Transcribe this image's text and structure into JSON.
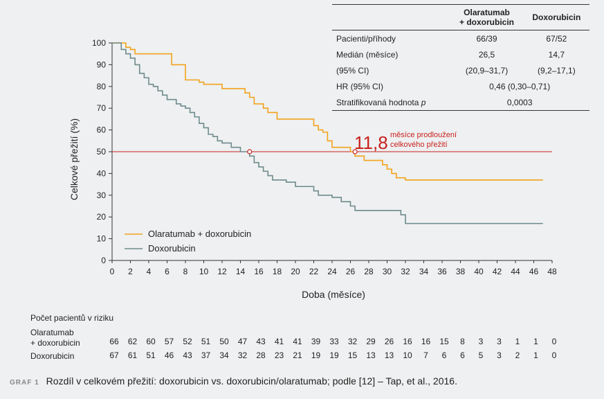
{
  "chart_data": {
    "type": "line",
    "xlabel": "Doba (měsíce)",
    "ylabel": "Celkové přežití (%)",
    "xlim": [
      0,
      48
    ],
    "ylim": [
      0,
      100
    ],
    "x_ticks": [
      0,
      2,
      4,
      6,
      8,
      10,
      12,
      14,
      16,
      18,
      20,
      22,
      24,
      26,
      28,
      30,
      32,
      34,
      36,
      38,
      40,
      42,
      44,
      46,
      48
    ],
    "y_ticks": [
      0,
      10,
      20,
      30,
      40,
      50,
      60,
      70,
      80,
      90,
      100
    ],
    "legend_position": "bottom-left",
    "series": [
      {
        "name": "Olaratumab + doxorubicin",
        "color": "#f2a21b",
        "x": [
          0,
          1,
          1.5,
          2,
          2.5,
          5,
          6.5,
          7,
          8,
          9.5,
          10,
          12,
          12.5,
          14.5,
          15,
          15.5,
          16,
          16.5,
          17,
          18,
          20,
          21,
          22,
          22.5,
          23,
          23.5,
          24,
          25,
          26,
          26.5,
          27.5,
          29,
          29.5,
          30,
          30.5,
          31,
          32,
          33,
          47
        ],
        "y": [
          100,
          100,
          98,
          97,
          95,
          95,
          90,
          90,
          83,
          82,
          81,
          79,
          79,
          77,
          75,
          72,
          72,
          70,
          68,
          65,
          65,
          65,
          62,
          60,
          59,
          55,
          52,
          52,
          50,
          48,
          46,
          46,
          44,
          42,
          40,
          38,
          37,
          37,
          37
        ]
      },
      {
        "name": "Doxorubicin",
        "color": "#6e8a8c",
        "x": [
          0,
          1,
          1.5,
          2,
          2.5,
          3,
          3.5,
          4,
          4.5,
          5,
          5.5,
          6,
          7,
          7.5,
          8,
          8.5,
          9,
          9.5,
          10,
          10.5,
          11,
          11.5,
          12,
          13,
          14,
          15,
          15.5,
          16,
          16.5,
          17,
          17.5,
          18,
          19,
          20,
          21,
          22,
          22.5,
          23,
          24,
          25,
          26,
          26.5,
          28,
          31,
          31.5,
          32,
          47
        ],
        "y": [
          100,
          97,
          95,
          93,
          90,
          86,
          84,
          81,
          80,
          78,
          76,
          74,
          72,
          71,
          70,
          68,
          66,
          63,
          61,
          58,
          57,
          55,
          54,
          52,
          50,
          48,
          45,
          43,
          41,
          39,
          37,
          37,
          36,
          34,
          34,
          32,
          30,
          30,
          29,
          27,
          25,
          23,
          23,
          23,
          21,
          17,
          17
        ]
      }
    ],
    "median_line": 50,
    "annotation": {
      "value": "11,8",
      "text_line1": "měsíce prodloužení",
      "text_line2": "celkového přežití",
      "color": "#c8201d"
    },
    "median_markers": [
      {
        "x": 15,
        "y": 50
      },
      {
        "x": 26.5,
        "y": 50
      }
    ]
  },
  "stats_table": {
    "headers": [
      "",
      "Olaratumab\n+ doxorubicin",
      "Doxorubicin"
    ],
    "rows": [
      {
        "label": "Pacienti/příhody",
        "a": "66/39",
        "b": "67/52"
      },
      {
        "label": "Medián (měsíce)",
        "a": "26,5",
        "b": "14,7"
      },
      {
        "label": "(95% CI)",
        "a": "(20,9–31,7)",
        "b": "(9,2–17,1)"
      },
      {
        "label": "HR (95% CI)",
        "span": "0,46 (0,30–0,71)"
      },
      {
        "label": "Stratifikovaná hodnota p",
        "span": "0,0003"
      }
    ]
  },
  "risk_table": {
    "title": "Počet pacientů v riziku",
    "rows": [
      {
        "label_line1": "Olaratumab",
        "label_line2": "+ doxorubicin",
        "values": [
          "66",
          "62",
          "60",
          "57",
          "52",
          "51",
          "50",
          "47",
          "43",
          "41",
          "41",
          "39",
          "33",
          "32",
          "29",
          "26",
          "16",
          "16",
          "15",
          "8",
          "3",
          "3",
          "1",
          "1",
          "0"
        ]
      },
      {
        "label_line1": "Doxorubicin",
        "label_line2": "",
        "values": [
          "67",
          "61",
          "51",
          "46",
          "43",
          "37",
          "34",
          "32",
          "28",
          "23",
          "21",
          "19",
          "19",
          "15",
          "13",
          "13",
          "10",
          "7",
          "6",
          "6",
          "5",
          "3",
          "2",
          "1",
          "0"
        ]
      }
    ]
  },
  "caption": {
    "tag": "GRAF 1",
    "text": "Rozdíl v celkovém přežití: doxorubicin vs. doxorubicin/olaratumab; podle [12] – Tap, et al., 2016."
  }
}
